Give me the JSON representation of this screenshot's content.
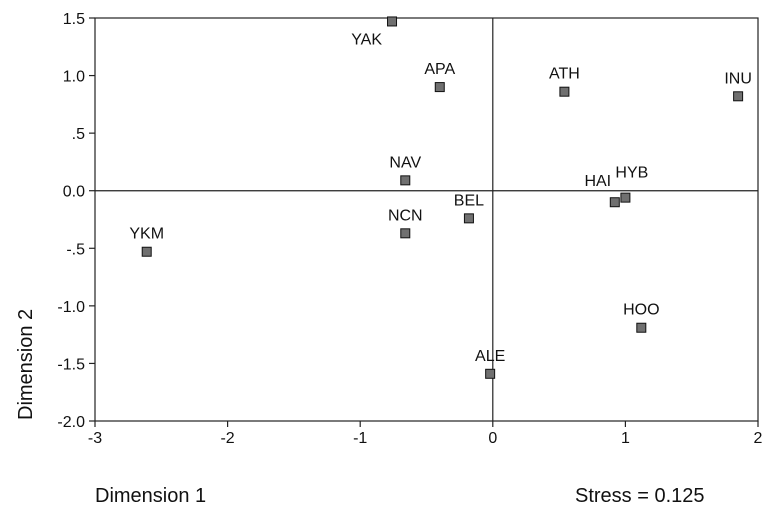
{
  "chart_data": {
    "type": "scatter",
    "title": "",
    "xlabel": "Dimension 1",
    "ylabel": "Dimension 2",
    "annotation": "Stress = 0.125",
    "xlim": [
      -3,
      2
    ],
    "ylim": [
      -2.0,
      1.5
    ],
    "x_ticks": [
      {
        "value": -3,
        "label": "-3"
      },
      {
        "value": -2,
        "label": "-2"
      },
      {
        "value": -1,
        "label": "-1"
      },
      {
        "value": 0,
        "label": "0"
      },
      {
        "value": 1,
        "label": "1"
      },
      {
        "value": 2,
        "label": "2"
      }
    ],
    "y_ticks": [
      {
        "value": 1.5,
        "label": "1.5"
      },
      {
        "value": 1.0,
        "label": "1.0"
      },
      {
        "value": 0.5,
        "label": ".5"
      },
      {
        "value": 0.0,
        "label": "0.0"
      },
      {
        "value": -0.5,
        "label": "-.5"
      },
      {
        "value": -1.0,
        "label": "-1.0"
      },
      {
        "value": -1.5,
        "label": "-1.5"
      },
      {
        "value": -2.0,
        "label": "-2.0"
      }
    ],
    "reference_lines": {
      "x": 0,
      "y": 0
    },
    "grid": false,
    "marker_color": "#707070",
    "points": [
      {
        "label": "YAK",
        "x": -0.76,
        "y": 1.47,
        "label_pos": "below-left"
      },
      {
        "label": "APA",
        "x": -0.4,
        "y": 0.9,
        "label_pos": "above"
      },
      {
        "label": "ATH",
        "x": 0.54,
        "y": 0.86,
        "label_pos": "above"
      },
      {
        "label": "INU",
        "x": 1.85,
        "y": 0.82,
        "label_pos": "above"
      },
      {
        "label": "NAV",
        "x": -0.66,
        "y": 0.09,
        "label_pos": "above"
      },
      {
        "label": "HYB",
        "x": 1.0,
        "y": -0.06,
        "label_pos": "above-right"
      },
      {
        "label": "HAI",
        "x": 0.92,
        "y": -0.1,
        "label_pos": "above-left"
      },
      {
        "label": "BEL",
        "x": -0.18,
        "y": -0.24,
        "label_pos": "above"
      },
      {
        "label": "NCN",
        "x": -0.66,
        "y": -0.37,
        "label_pos": "above"
      },
      {
        "label": "YKM",
        "x": -2.61,
        "y": -0.53,
        "label_pos": "above"
      },
      {
        "label": "HOO",
        "x": 1.12,
        "y": -1.19,
        "label_pos": "above"
      },
      {
        "label": "ALE",
        "x": -0.02,
        "y": -1.59,
        "label_pos": "above"
      }
    ]
  }
}
